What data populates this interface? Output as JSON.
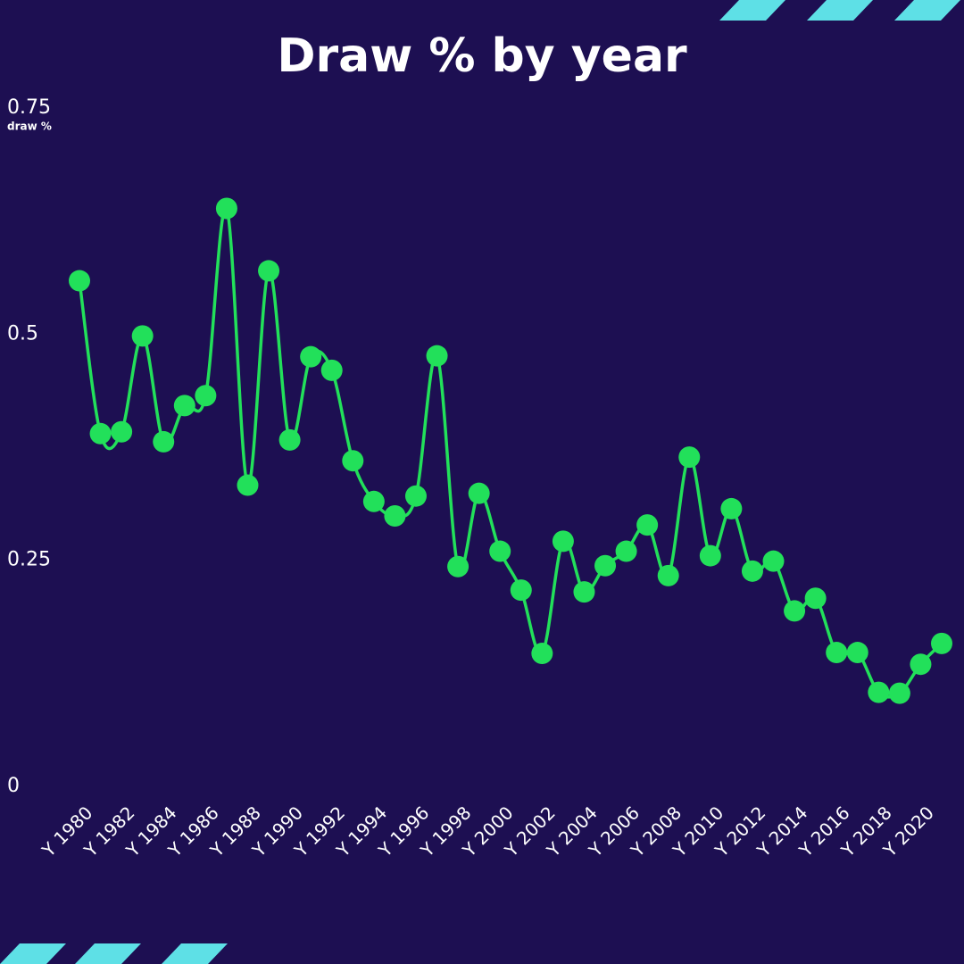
{
  "chart_data": {
    "type": "line",
    "title": "Draw % by year",
    "y_label": "draw %",
    "categories": [
      "Y 1980",
      null,
      "Y 1982",
      null,
      "Y 1984",
      null,
      "Y 1986",
      null,
      "Y 1988",
      null,
      "Y 1990",
      null,
      "Y 1992",
      null,
      "Y 1994",
      null,
      "Y 1996",
      null,
      "Y 1998",
      null,
      "Y 2000",
      null,
      "Y 2002",
      null,
      "Y 2004",
      null,
      "Y 2006",
      null,
      "Y 2008",
      null,
      "Y 2010",
      null,
      "Y 2012",
      null,
      "Y 2014",
      null,
      "Y 2016",
      null,
      "Y 2018",
      null,
      "Y 2020",
      null
    ],
    "values": [
      0.559,
      0.39,
      0.392,
      0.498,
      0.381,
      0.421,
      0.432,
      0.639,
      0.333,
      0.57,
      0.383,
      0.475,
      0.46,
      0.36,
      0.315,
      0.299,
      0.321,
      0.476,
      0.243,
      0.324,
      0.26,
      0.217,
      0.147,
      0.271,
      0.215,
      0.244,
      0.26,
      0.289,
      0.233,
      0.364,
      0.255,
      0.307,
      0.238,
      0.249,
      0.194,
      0.208,
      0.148,
      0.148,
      0.104,
      0.103,
      0.135,
      0.158
    ],
    "color": "#22e05a",
    "ylim": [
      0,
      0.75
    ],
    "yticks": [
      0,
      0.25,
      0.5,
      0.75
    ],
    "grid": false
  }
}
